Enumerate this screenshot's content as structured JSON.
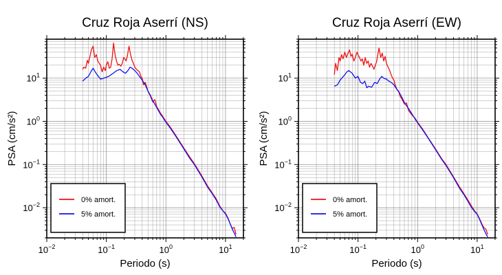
{
  "chart_data": [
    {
      "type": "line",
      "title": "Cruz Roja Aserrí (NS)",
      "xlabel": "Periodo (s)",
      "ylabel": "PSA (cm/s²)",
      "xscale": "log",
      "yscale": "log",
      "xlim": [
        0.01,
        20
      ],
      "ylim": [
        0.002,
        80
      ],
      "grid": true,
      "legend_position": "bottom-left",
      "x_ticks": [
        {
          "value": 0.01,
          "base": "10",
          "exp": "−2"
        },
        {
          "value": 0.1,
          "base": "10",
          "exp": "−1"
        },
        {
          "value": 1,
          "base": "10",
          "exp": "0"
        },
        {
          "value": 10,
          "base": "10",
          "exp": "1"
        }
      ],
      "y_ticks": [
        {
          "value": 0.01,
          "base": "10",
          "exp": "−2"
        },
        {
          "value": 0.1,
          "base": "10",
          "exp": "−1"
        },
        {
          "value": 1,
          "base": "10",
          "exp": "0"
        },
        {
          "value": 10,
          "base": "10",
          "exp": "1"
        }
      ],
      "series": [
        {
          "name": "0% amort.",
          "color": "#ee1111",
          "x": [
            0.04,
            0.042,
            0.045,
            0.048,
            0.05,
            0.053,
            0.056,
            0.06,
            0.064,
            0.068,
            0.072,
            0.076,
            0.08,
            0.085,
            0.09,
            0.096,
            0.1,
            0.106,
            0.112,
            0.118,
            0.125,
            0.132,
            0.14,
            0.148,
            0.156,
            0.165,
            0.175,
            0.185,
            0.195,
            0.205,
            0.215,
            0.225,
            0.24,
            0.255,
            0.27,
            0.285,
            0.3,
            0.32,
            0.34,
            0.36,
            0.38,
            0.4,
            0.42,
            0.45,
            0.48,
            0.5,
            0.55,
            0.6,
            0.65,
            0.7,
            0.8,
            0.9,
            1.0,
            1.2,
            1.5,
            2.0,
            2.5,
            3.0,
            4.0,
            5.0,
            6.0,
            7.0,
            8.0,
            9.0,
            10,
            11,
            12,
            13,
            14,
            15
          ],
          "y": [
            16,
            18,
            17,
            26,
            22,
            32,
            45,
            55,
            30,
            35,
            25,
            22,
            20,
            14,
            18,
            15,
            20,
            24,
            17,
            18,
            28,
            65,
            35,
            25,
            20,
            21,
            19,
            22,
            30,
            28,
            25,
            33,
            55,
            35,
            26,
            22,
            18,
            16,
            15,
            14,
            11,
            10,
            7,
            8,
            6,
            5,
            3.8,
            2.8,
            3.2,
            2.2,
            1.6,
            1.25,
            1.0,
            0.72,
            0.45,
            0.24,
            0.15,
            0.105,
            0.055,
            0.032,
            0.022,
            0.016,
            0.011,
            0.0085,
            0.0075,
            0.0058,
            0.0042,
            0.0033,
            0.0035,
            0.0024
          ]
        },
        {
          "name": "5% amort.",
          "color": "#1111ee",
          "x": [
            0.04,
            0.045,
            0.05,
            0.055,
            0.06,
            0.065,
            0.07,
            0.08,
            0.09,
            0.1,
            0.11,
            0.12,
            0.13,
            0.14,
            0.15,
            0.17,
            0.19,
            0.21,
            0.23,
            0.25,
            0.27,
            0.3,
            0.33,
            0.36,
            0.4,
            0.45,
            0.5,
            0.55,
            0.6,
            0.7,
            0.8,
            0.9,
            1.0,
            1.2,
            1.5,
            2.0,
            2.5,
            3.0,
            4.0,
            5.0,
            6.0,
            7.0,
            8.0,
            9.0,
            10,
            11,
            12,
            13,
            14,
            15
          ],
          "y": [
            8.5,
            10,
            11,
            14,
            17,
            14,
            12,
            9.5,
            10,
            10.5,
            11,
            12,
            13,
            14,
            15,
            16,
            14,
            13,
            15,
            18,
            17,
            15,
            13,
            11,
            9,
            7,
            5,
            4,
            3,
            2.1,
            1.5,
            1.2,
            0.95,
            0.68,
            0.43,
            0.23,
            0.14,
            0.1,
            0.052,
            0.03,
            0.021,
            0.015,
            0.0105,
            0.0085,
            0.0072,
            0.0056,
            0.0042,
            0.0032,
            0.0026,
            0.0021
          ]
        }
      ]
    },
    {
      "type": "line",
      "title": "Cruz Roja Aserrí (EW)",
      "xlabel": "Periodo (s)",
      "ylabel": "PSA (cm/s²)",
      "xscale": "log",
      "yscale": "log",
      "xlim": [
        0.01,
        20
      ],
      "ylim": [
        0.002,
        80
      ],
      "grid": true,
      "legend_position": "bottom-left",
      "x_ticks": [
        {
          "value": 0.01,
          "base": "10",
          "exp": "−2"
        },
        {
          "value": 0.1,
          "base": "10",
          "exp": "−1"
        },
        {
          "value": 1,
          "base": "10",
          "exp": "0"
        },
        {
          "value": 10,
          "base": "10",
          "exp": "1"
        }
      ],
      "y_ticks": [
        {
          "value": 0.01,
          "base": "10",
          "exp": "−2"
        },
        {
          "value": 0.1,
          "base": "10",
          "exp": "−1"
        },
        {
          "value": 1,
          "base": "10",
          "exp": "0"
        },
        {
          "value": 10,
          "base": "10",
          "exp": "1"
        }
      ],
      "series": [
        {
          "name": "0% amort.",
          "color": "#ee1111",
          "x": [
            0.04,
            0.042,
            0.045,
            0.048,
            0.05,
            0.053,
            0.056,
            0.06,
            0.064,
            0.068,
            0.072,
            0.076,
            0.08,
            0.085,
            0.09,
            0.096,
            0.1,
            0.106,
            0.112,
            0.118,
            0.125,
            0.132,
            0.14,
            0.148,
            0.156,
            0.165,
            0.175,
            0.185,
            0.195,
            0.205,
            0.215,
            0.225,
            0.24,
            0.255,
            0.27,
            0.285,
            0.3,
            0.32,
            0.34,
            0.36,
            0.38,
            0.4,
            0.42,
            0.45,
            0.48,
            0.5,
            0.55,
            0.6,
            0.65,
            0.7,
            0.8,
            0.9,
            1.0,
            1.2,
            1.5,
            2.0,
            2.5,
            3.0,
            4.0,
            5.0,
            6.0,
            7.0,
            8.0,
            9.0,
            10,
            11,
            12,
            13,
            14,
            15
          ],
          "y": [
            12,
            22,
            15,
            30,
            25,
            35,
            28,
            40,
            30,
            38,
            45,
            32,
            36,
            25,
            30,
            40,
            35,
            30,
            25,
            28,
            20,
            30,
            22,
            25,
            18,
            22,
            19,
            16,
            20,
            24,
            35,
            50,
            30,
            38,
            25,
            32,
            22,
            18,
            15,
            12,
            10,
            9,
            7,
            5.5,
            5,
            4,
            3.2,
            2.5,
            2.7,
            1.8,
            1.4,
            1.2,
            0.95,
            0.68,
            0.42,
            0.23,
            0.14,
            0.1,
            0.052,
            0.031,
            0.021,
            0.015,
            0.011,
            0.0085,
            0.0072,
            0.0055,
            0.0042,
            0.0034,
            0.0032,
            0.0024
          ]
        },
        {
          "name": "5% amort.",
          "color": "#1111ee",
          "x": [
            0.04,
            0.045,
            0.05,
            0.055,
            0.06,
            0.065,
            0.07,
            0.08,
            0.09,
            0.1,
            0.11,
            0.12,
            0.13,
            0.14,
            0.15,
            0.17,
            0.19,
            0.21,
            0.23,
            0.25,
            0.27,
            0.3,
            0.33,
            0.36,
            0.4,
            0.45,
            0.5,
            0.55,
            0.6,
            0.7,
            0.8,
            0.9,
            1.0,
            1.2,
            1.5,
            2.0,
            2.5,
            3.0,
            4.0,
            5.0,
            6.0,
            7.0,
            8.0,
            9.0,
            10,
            11,
            12,
            13,
            14,
            15
          ],
          "y": [
            6.5,
            7,
            9,
            10.5,
            12,
            14,
            15,
            13,
            10,
            11,
            8,
            7.5,
            8.5,
            6,
            6.5,
            6.2,
            8,
            7.5,
            9.5,
            11,
            10,
            9.5,
            8.5,
            8,
            7,
            5.5,
            4.5,
            3.5,
            2.7,
            2.0,
            1.5,
            1.15,
            0.92,
            0.65,
            0.41,
            0.22,
            0.135,
            0.095,
            0.05,
            0.029,
            0.02,
            0.014,
            0.0102,
            0.0082,
            0.007,
            0.0053,
            0.004,
            0.0031,
            0.0025,
            0.0021
          ]
        }
      ]
    }
  ]
}
